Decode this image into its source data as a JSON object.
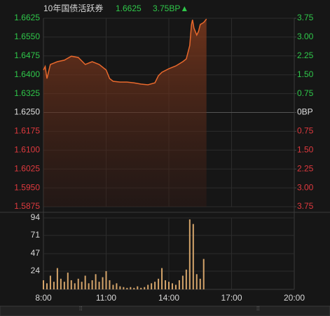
{
  "chart_data": [
    {
      "type": "line",
      "title": "10年国债活跃券",
      "last_price": 1.6625,
      "change": "3.75BP▲",
      "x": [
        "8:00",
        "8:05",
        "8:10",
        "8:20",
        "8:40",
        "9:00",
        "9:20",
        "9:40",
        "10:00",
        "10:20",
        "10:40",
        "11:00",
        "11:10",
        "11:20",
        "11:40",
        "12:00",
        "12:20",
        "12:40",
        "13:00",
        "13:20",
        "13:30",
        "13:40",
        "14:00",
        "14:20",
        "14:40",
        "14:50",
        "15:00",
        "15:05",
        "15:08",
        "15:12",
        "15:20",
        "15:25",
        "15:30",
        "15:40",
        "15:48"
      ],
      "series": [
        {
          "name": "10年国债活跃券",
          "color": "#e8682c",
          "values": [
            1.6419,
            1.6433,
            1.6385,
            1.6441,
            1.6452,
            1.6458,
            1.6474,
            1.6469,
            1.6441,
            1.6452,
            1.6441,
            1.6419,
            1.6385,
            1.6374,
            1.6371,
            1.6371,
            1.6368,
            1.6363,
            1.636,
            1.6368,
            1.6396,
            1.641,
            1.6424,
            1.6435,
            1.6452,
            1.6463,
            1.6516,
            1.66,
            1.6619,
            1.6586,
            1.6558,
            1.6572,
            1.66,
            1.6608,
            1.6622
          ]
        }
      ],
      "xlim": [
        "8:00",
        "20:00"
      ],
      "xticks": [
        "8:00",
        "11:00",
        "14:00",
        "17:00",
        "20:00"
      ],
      "ylim": [
        1.5875,
        1.6625
      ],
      "yticks": [
        {
          "value": 1.6625,
          "label": "1.6625"
        },
        {
          "value": 1.655,
          "label": "1.6550"
        },
        {
          "value": 1.6475,
          "label": "1.6475"
        },
        {
          "value": 1.64,
          "label": "1.6400"
        },
        {
          "value": 1.6325,
          "label": "1.6325"
        },
        {
          "value": 1.625,
          "label": "1.6250"
        },
        {
          "value": 1.6175,
          "label": "1.6175"
        },
        {
          "value": 1.61,
          "label": "1.6100"
        },
        {
          "value": 1.6025,
          "label": "1.6025"
        },
        {
          "value": 1.595,
          "label": "1.5950"
        },
        {
          "value": 1.5875,
          "label": "1.5875"
        }
      ],
      "y2lim": [
        -3.75,
        3.75
      ],
      "y2ticks": [
        {
          "value": 3.75,
          "label": "3.75"
        },
        {
          "value": 3,
          "label": "3.00"
        },
        {
          "value": 2.25,
          "label": "2.25"
        },
        {
          "value": 1.5,
          "label": "1.50"
        },
        {
          "value": 0.75,
          "label": "0.75"
        },
        {
          "value": 0,
          "label": "0BP"
        },
        {
          "value": -0.75,
          "label": "0.75"
        },
        {
          "value": -1.5,
          "label": "1.50"
        },
        {
          "value": -2.25,
          "label": "2.25"
        },
        {
          "value": -3,
          "label": "3.00"
        },
        {
          "value": -3.75,
          "label": "3.75"
        }
      ],
      "grid": true
    },
    {
      "type": "bar",
      "color": "#d4a46a",
      "x": [
        "8:00",
        "8:10",
        "8:20",
        "8:30",
        "8:40",
        "8:50",
        "9:00",
        "9:10",
        "9:20",
        "9:30",
        "9:40",
        "9:50",
        "10:00",
        "10:10",
        "10:20",
        "10:30",
        "10:40",
        "10:50",
        "11:00",
        "11:10",
        "11:20",
        "11:30",
        "11:40",
        "11:50",
        "12:00",
        "12:10",
        "12:20",
        "12:30",
        "12:40",
        "12:50",
        "13:00",
        "13:10",
        "13:20",
        "13:30",
        "13:40",
        "13:50",
        "14:00",
        "14:10",
        "14:20",
        "14:30",
        "14:40",
        "14:50",
        "15:00",
        "15:10",
        "15:20",
        "15:30",
        "15:40"
      ],
      "values": [
        12,
        8,
        18,
        10,
        28,
        14,
        10,
        22,
        12,
        8,
        14,
        10,
        18,
        8,
        12,
        20,
        10,
        16,
        24,
        12,
        6,
        8,
        4,
        3,
        2,
        3,
        2,
        4,
        2,
        3,
        6,
        8,
        10,
        14,
        28,
        12,
        10,
        8,
        6,
        12,
        18,
        26,
        92,
        86,
        20,
        14,
        40
      ],
      "ylim": [
        0,
        94
      ],
      "yticks": [
        94,
        71,
        47,
        24
      ],
      "grid": true
    }
  ]
}
